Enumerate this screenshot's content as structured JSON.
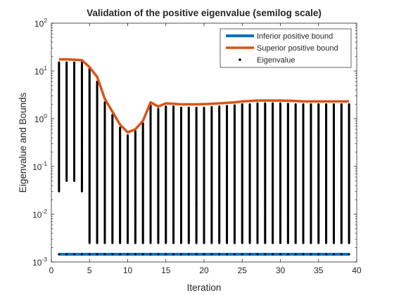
{
  "chart_data": {
    "type": "scatter",
    "title": "Validation of the positive eigenvalue (semilog scale)",
    "xlabel": "Iteration",
    "ylabel": "Eigenvalue and Bounds",
    "xlim": [
      0,
      40
    ],
    "ylim": [
      0.001,
      100
    ],
    "yscale": "log",
    "x_ticks": [
      0,
      5,
      10,
      15,
      20,
      25,
      30,
      35,
      40
    ],
    "x_tick_labels": [
      "0",
      "5",
      "10",
      "15",
      "20",
      "25",
      "30",
      "35",
      "40"
    ],
    "y_ticks": [
      0.001,
      0.01,
      0.1,
      1,
      10,
      100
    ],
    "y_tick_labels": [
      {
        "base": "10",
        "exp": "-3"
      },
      {
        "base": "10",
        "exp": "-2"
      },
      {
        "base": "10",
        "exp": "-1"
      },
      {
        "base": "10",
        "exp": "0"
      },
      {
        "base": "10",
        "exp": "1"
      },
      {
        "base": "10",
        "exp": "2"
      }
    ],
    "grid": false,
    "legend_position": "top-right",
    "series": [
      {
        "name": "Inferior positive bound",
        "style": "line",
        "color": "#0072BD",
        "x": [
          1,
          39
        ],
        "y": [
          0.00145,
          0.00145
        ]
      },
      {
        "name": "Superior positive bound",
        "style": "line",
        "color": "#D95319",
        "x": [
          1,
          2,
          3,
          4,
          5,
          6,
          7,
          8,
          9,
          10,
          11,
          12,
          13,
          14,
          15,
          16,
          17,
          18,
          19,
          20,
          21,
          22,
          23,
          24,
          25,
          26,
          27,
          28,
          29,
          30,
          31,
          32,
          33,
          34,
          35,
          36,
          37,
          38,
          39
        ],
        "y": [
          17.5,
          17.5,
          17.2,
          16.8,
          12,
          7.5,
          2.6,
          1.4,
          0.75,
          0.52,
          0.6,
          0.9,
          2.2,
          1.8,
          2.1,
          2.05,
          2.0,
          2.0,
          2.0,
          2.02,
          2.05,
          2.1,
          2.15,
          2.2,
          2.3,
          2.35,
          2.4,
          2.4,
          2.4,
          2.4,
          2.38,
          2.35,
          2.3,
          2.3,
          2.3,
          2.3,
          2.3,
          2.3,
          2.3
        ]
      },
      {
        "name": "Eigenvalue",
        "style": "markers",
        "color": "#000000",
        "x": [
          1,
          2,
          3,
          4,
          5,
          6,
          7,
          8,
          9,
          10,
          11,
          12,
          13,
          14,
          15,
          16,
          17,
          18,
          19,
          20,
          21,
          22,
          23,
          24,
          25,
          26,
          27,
          28,
          29,
          30,
          31,
          32,
          33,
          34,
          35,
          36,
          37,
          38,
          39
        ],
        "y_min": [
          0.03,
          0.05,
          0.05,
          0.03,
          0.0025,
          0.0025,
          0.0025,
          0.0025,
          0.0025,
          0.0025,
          0.0025,
          0.0025,
          0.0025,
          0.0025,
          0.0025,
          0.0025,
          0.0025,
          0.0025,
          0.0025,
          0.0025,
          0.0025,
          0.0025,
          0.0025,
          0.0025,
          0.0025,
          0.0025,
          0.0025,
          0.0025,
          0.0025,
          0.0025,
          0.0025,
          0.0025,
          0.0025,
          0.0025,
          0.0025,
          0.0025,
          0.0025,
          0.0025,
          0.0025
        ],
        "y_max": [
          15,
          15,
          15,
          15,
          11,
          6,
          2.2,
          1.2,
          0.65,
          0.45,
          0.55,
          0.8,
          1.9,
          1.6,
          1.8,
          1.8,
          1.7,
          1.7,
          1.7,
          1.7,
          1.75,
          1.8,
          1.85,
          1.9,
          2.0,
          2.0,
          2.1,
          2.1,
          2.1,
          2.1,
          2.05,
          2.0,
          2.0,
          2.0,
          2.0,
          2.0,
          2.0,
          2.0,
          2.0
        ],
        "lower_values": [
          0.00145
        ],
        "note_points": [
          [
            17,
            0.016
          ],
          [
            19,
            0.016
          ],
          [
            21,
            0.016
          ],
          [
            23,
            0.016
          ]
        ]
      }
    ]
  }
}
